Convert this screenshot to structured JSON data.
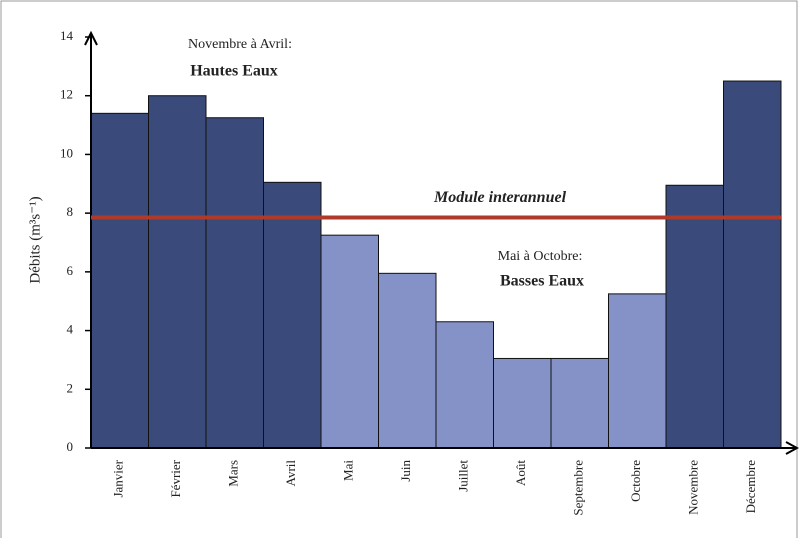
{
  "chart_data": {
    "type": "bar",
    "ylabel": "Débits (m³s⁻¹)",
    "categories": [
      "Janvier",
      "Février",
      "Mars",
      "Avril",
      "Mai",
      "Juin",
      "Juillet",
      "Août",
      "Septembre",
      "Octobre",
      "Novembre",
      "Décembre"
    ],
    "values": [
      11.4,
      12.0,
      11.25,
      9.05,
      7.25,
      5.95,
      4.3,
      3.05,
      3.05,
      5.25,
      8.95,
      12.5
    ],
    "bar_colors": [
      "#3a4a7a",
      "#3a4a7a",
      "#3a4a7a",
      "#3a4a7a",
      "#8592c8",
      "#8592c8",
      "#8592c8",
      "#8592c8",
      "#8592c8",
      "#8592c8",
      "#3a4a7a",
      "#3a4a7a"
    ],
    "ylim": [
      0,
      14
    ],
    "yticks": [
      0,
      2,
      4,
      6,
      8,
      10,
      12,
      14
    ],
    "module": {
      "label": "Module interannuel",
      "value": 7.85,
      "color": "#b03a2a"
    },
    "annotations": [
      {
        "text": "Novembre à Avril:",
        "color": "#222222"
      },
      {
        "text": "Hautes Eaux",
        "color": "#2a4a9a"
      },
      {
        "text": "Mai à Octobre:",
        "color": "#222222"
      },
      {
        "text": "Basses Eaux",
        "color": "#8592c8"
      }
    ]
  }
}
